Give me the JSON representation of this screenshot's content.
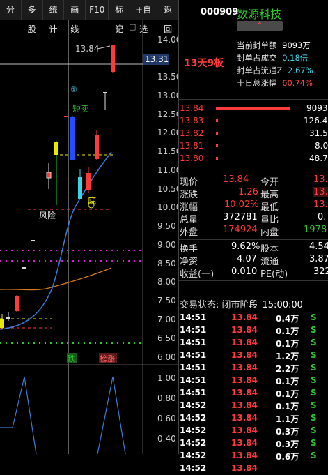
{
  "toolbar": {
    "buttons": [
      "分时",
      "多股",
      "统计",
      "画线",
      "F10",
      "标记",
      "+自选",
      "返回"
    ]
  },
  "stock": {
    "code": "000909",
    "name": "数源科技",
    "collapse_glyph": "⌃"
  },
  "chart": {
    "price_ticks": [
      "14.00",
      "13.50",
      "13.00",
      "12.50",
      "12.00",
      "11.50",
      "11.00",
      "10.50",
      "10.00",
      "9.50",
      "9.00",
      "8.50",
      "8.00",
      "7.50",
      "7.00",
      "6.50",
      "6.00"
    ],
    "current_price_tag": "13.31",
    "high_label": "13.84",
    "annotations": {
      "short_sell": "短卖",
      "risk": "风险",
      "bottom": "底",
      "circle_marker": "①"
    },
    "signal_labels": {
      "drop": "跌",
      "list_rise": "榜涨"
    },
    "indicator_ticks": [
      "1.00",
      "0.80",
      "0.60",
      "0.40"
    ],
    "diamond_icon": "◇",
    "menu_icon": "□"
  },
  "seal": {
    "board_text": "13天9板",
    "rows": [
      {
        "label": "当前封单额",
        "value": "9093万",
        "color": "white"
      },
      {
        "label": "封单占成交",
        "value": "0.18倍",
        "color": "cyan"
      },
      {
        "label": "封单占流通Z",
        "value": "2.67%",
        "color": "cyan"
      },
      {
        "label": "十日总涨幅",
        "value": "60.74%",
        "color": "red"
      }
    ]
  },
  "order_book": [
    {
      "price": "13.84",
      "volume": "9093",
      "bar": 1.0
    },
    {
      "price": "13.83",
      "volume": "126.4",
      "bar": 0.02
    },
    {
      "price": "13.82",
      "volume": "31.5",
      "bar": 0.02
    },
    {
      "price": "13.81",
      "volume": "8.0",
      "bar": 0.02
    },
    {
      "price": "13.80",
      "volume": "48.7",
      "bar": 0.02
    }
  ],
  "quote": [
    {
      "l1": "现价",
      "v1": "13.84",
      "c1": "red",
      "l2": "今开",
      "v2": "13.",
      "c2": "red"
    },
    {
      "l1": "涨跌",
      "v1": "1.26",
      "c1": "red",
      "l2": "最高",
      "v2": "13.",
      "c2": "red"
    },
    {
      "l1": "涨幅",
      "v1": "10.02%",
      "c1": "red",
      "l2": "最低",
      "v2": "13.",
      "c2": "red"
    },
    {
      "l1": "总量",
      "v1": "372781",
      "c1": "white",
      "l2": "量比",
      "v2": "0.",
      "c2": "white"
    },
    {
      "l1": "外盘",
      "v1": "174924",
      "c1": "red",
      "l2": "内盘",
      "v2": "1978",
      "c2": "green"
    },
    {
      "l1": "换手",
      "v1": "9.62%",
      "c1": "white",
      "l2": "股本",
      "v2": "4.54",
      "c2": "white"
    },
    {
      "l1": "净资",
      "v1": "4.07",
      "c1": "white",
      "l2": "流通",
      "v2": "3.87",
      "c2": "white"
    },
    {
      "l1": "收益(一)",
      "v1": "0.010",
      "c1": "white",
      "l2": "PE(动)",
      "v2": "322",
      "c2": "white"
    }
  ],
  "trade_state": {
    "label": "交易状态: 闭市阶段",
    "time": "15:00:00"
  },
  "ticks": [
    {
      "time": "14:51",
      "price": "13.84",
      "vol": "0.4万",
      "side": "S"
    },
    {
      "time": "14:51",
      "price": "13.84",
      "vol": "0.1万",
      "side": "S"
    },
    {
      "time": "14:51",
      "price": "13.84",
      "vol": "0.1万",
      "side": "S"
    },
    {
      "time": "14:51",
      "price": "13.84",
      "vol": "1.2万",
      "side": "S"
    },
    {
      "time": "14:51",
      "price": "13.84",
      "vol": "2.2万",
      "side": "S"
    },
    {
      "time": "14:51",
      "price": "13.84",
      "vol": "0.1万",
      "side": "S"
    },
    {
      "time": "14:51",
      "price": "13.84",
      "vol": "0.1万",
      "side": "S"
    },
    {
      "time": "14:52",
      "price": "13.84",
      "vol": "0.1万",
      "side": "S"
    },
    {
      "time": "14:52",
      "price": "13.84",
      "vol": "1.1万",
      "side": "S"
    },
    {
      "time": "14:52",
      "price": "13.84",
      "vol": "0.3万",
      "side": "S"
    },
    {
      "time": "14:52",
      "price": "13.84",
      "vol": "0.3万",
      "side": "S"
    },
    {
      "time": "14:52",
      "price": "13.84",
      "vol": "0.6万",
      "side": "S"
    },
    {
      "time": "14:52",
      "price": "13.84",
      "vol": "",
      "side": ""
    }
  ],
  "colors": {
    "red": "#ff3a3a",
    "green": "#2ec52e",
    "cyan": "#3fd1e6",
    "magenta": "#d020d0",
    "yellow": "#e8e800",
    "blue": "#2050ff"
  }
}
